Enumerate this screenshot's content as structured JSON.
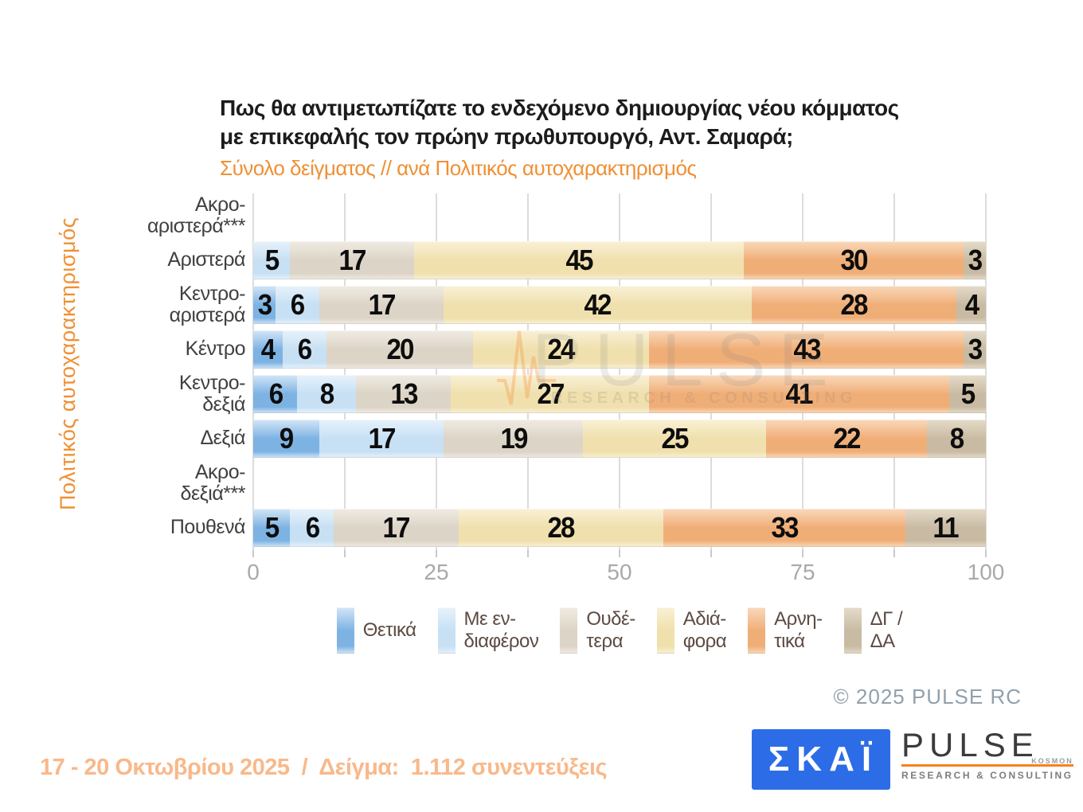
{
  "page": {
    "title_line1": "Πως θα αντιμετωπίζατε το ενδεχόμενο δημιουργίας νέου κόμματος",
    "title_line2": "με επικεφαλής τον πρώην πρωθυπουργό, Αντ. Σαμαρά;",
    "subtitle": "Σύνολο δείγματος // ανά Πολιτικός αυτοχαρακτηρισμός",
    "footer": "17 - 20 Οκτωβρίου 2025  /  Δείγμα:  1.112 συνεντεύξεις",
    "copyright": "© 2025 PULSE RC"
  },
  "logos": {
    "skai_text": "ΣΚΑΪ",
    "pulse_text": "PULSE",
    "pulse_kosmon": "KOSMON",
    "pulse_subtext": "RESEARCH & CONSULTING"
  },
  "watermark": {
    "text": "PULSE",
    "subtext": "RESEARCH & CONSULTING"
  },
  "colors": {
    "accent_orange": "#ef9035",
    "footer_orange": "#f9b88a",
    "skai_blue": "#2c6ce6",
    "pulse_orange": "#f58220",
    "grid": "#dcdcdc",
    "axis_text": "#a9a9a9",
    "category_text": "#404040",
    "legend_text": "#5c4b43"
  },
  "chart_data": {
    "type": "bar",
    "orientation": "horizontal",
    "stacked": true,
    "title": "Πως θα αντιμετωπίζατε το ενδεχόμενο δημιουργίας νέου κόμματος με επικεφαλής τον πρώην πρωθυπουργό, Αντ. Σαμαρά;",
    "subtitle": "Σύνολο δείγματος // ανά Πολιτικός αυτοχαρακτηρισμός",
    "ylabel": "Πολιτικός αυτοχαρακτηρισμός",
    "xlim": [
      0,
      100
    ],
    "xticks": [
      0,
      25,
      50,
      75,
      100
    ],
    "grid_step": 12.5,
    "grid": true,
    "legend_position": "bottom",
    "categories": [
      {
        "lines": [
          "Ακρο-",
          "αριστερά***"
        ]
      },
      {
        "lines": [
          "Αριστερά"
        ]
      },
      {
        "lines": [
          "Κεντρο-",
          "αριστερά"
        ]
      },
      {
        "lines": [
          "Κέντρο"
        ]
      },
      {
        "lines": [
          "Κεντρο-",
          "δεξιά"
        ]
      },
      {
        "lines": [
          "Δεξιά"
        ]
      },
      {
        "lines": [
          "Ακρο-",
          "δεξιά***"
        ]
      },
      {
        "lines": [
          "Πουθενά"
        ]
      }
    ],
    "series": [
      {
        "name": "Θετικά",
        "legend_lines": [
          "Θετικά"
        ],
        "color": "#7db3e3",
        "color_light": "#d3e6f7",
        "values": [
          null,
          0,
          3,
          4,
          6,
          9,
          null,
          5
        ]
      },
      {
        "name": "Με ενδιαφέρον",
        "legend_lines": [
          "Με εν-",
          "διαφέρον"
        ],
        "color": "#c7e0f4",
        "color_light": "#e7f2fb",
        "values": [
          null,
          5,
          6,
          6,
          8,
          17,
          null,
          6
        ]
      },
      {
        "name": "Ουδέτερα",
        "legend_lines": [
          "Ουδέ-",
          "τερα"
        ],
        "color": "#dcd4c6",
        "color_light": "#f0ebe3",
        "values": [
          null,
          17,
          17,
          20,
          13,
          19,
          null,
          17
        ]
      },
      {
        "name": "Αδιάφορα",
        "legend_lines": [
          "Αδιά-",
          "φορα"
        ],
        "color": "#f0e0ad",
        "color_light": "#f9f1d6",
        "values": [
          null,
          45,
          42,
          24,
          27,
          25,
          null,
          28
        ]
      },
      {
        "name": "Αρνητικά",
        "legend_lines": [
          "Αρνη-",
          "τικά"
        ],
        "color": "#f0ae77",
        "color_light": "#f9d9bb",
        "values": [
          null,
          30,
          28,
          43,
          41,
          22,
          null,
          33
        ]
      },
      {
        "name": "ΔΓ/ΔΑ",
        "legend_lines": [
          "ΔΓ /",
          "ΔΑ"
        ],
        "color": "#c9bba3",
        "color_light": "#e4dbc9",
        "values": [
          null,
          3,
          4,
          3,
          5,
          8,
          null,
          11
        ]
      }
    ]
  }
}
